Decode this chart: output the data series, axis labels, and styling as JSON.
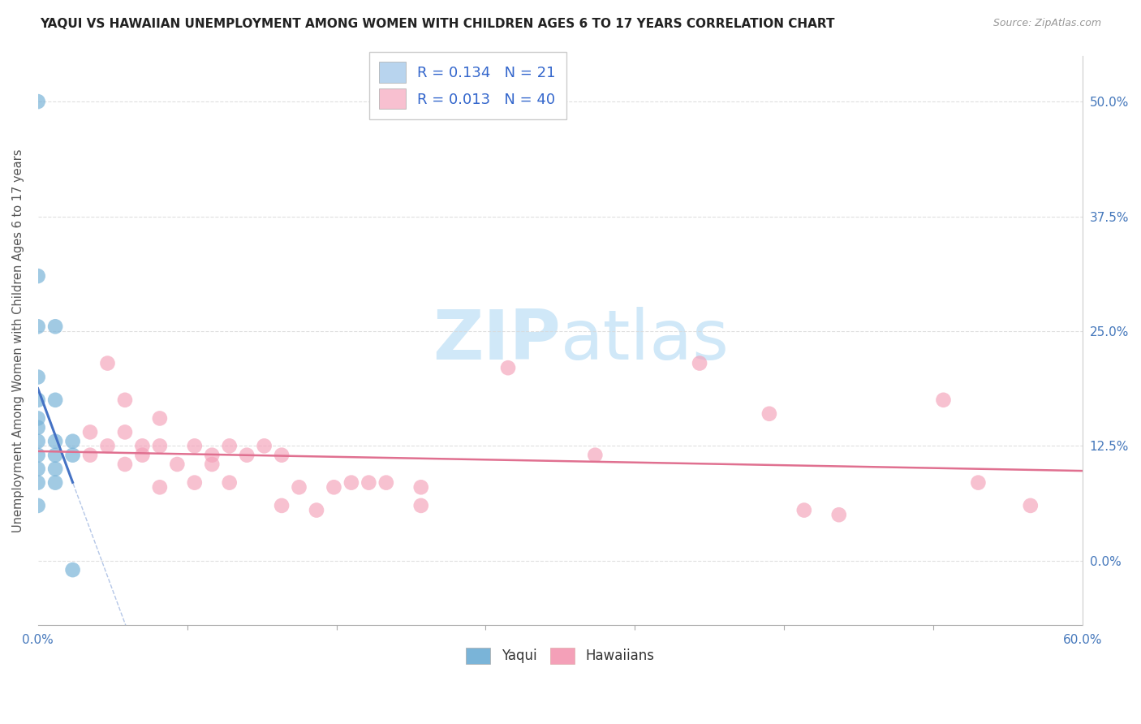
{
  "title": "YAQUI VS HAWAIIAN UNEMPLOYMENT AMONG WOMEN WITH CHILDREN AGES 6 TO 17 YEARS CORRELATION CHART",
  "source": "Source: ZipAtlas.com",
  "ylabel": "Unemployment Among Women with Children Ages 6 to 17 years",
  "xlim": [
    0.0,
    0.6
  ],
  "ylim": [
    -0.07,
    0.55
  ],
  "xtick_vals": [
    0.0,
    0.6
  ],
  "xtick_labels": [
    "0.0%",
    "60.0%"
  ],
  "ytick_positions_right": [
    0.5,
    0.375,
    0.25,
    0.125,
    0.0
  ],
  "ytick_labels_right": [
    "50.0%",
    "37.5%",
    "25.0%",
    "12.5%",
    "0.0%"
  ],
  "legend_r_n": [
    {
      "R": "0.134",
      "N": "21",
      "color": "#b8d4ee"
    },
    {
      "R": "0.013",
      "N": "40",
      "color": "#f8c0d0"
    }
  ],
  "legend_label_color": "#333333",
  "legend_value_color": "#3366cc",
  "yaqui_color": "#7ab4d8",
  "hawaiian_color": "#f4a0b8",
  "yaqui_scatter_x": [
    0.0,
    0.0,
    0.0,
    0.01,
    0.0,
    0.01,
    0.0,
    0.0,
    0.0,
    0.0,
    0.01,
    0.02,
    0.0,
    0.01,
    0.02,
    0.0,
    0.01,
    0.0,
    0.01,
    0.0,
    0.02
  ],
  "yaqui_scatter_y": [
    0.5,
    0.31,
    0.255,
    0.255,
    0.2,
    0.175,
    0.175,
    0.155,
    0.145,
    0.13,
    0.13,
    0.13,
    0.115,
    0.115,
    0.115,
    0.1,
    0.1,
    0.085,
    0.085,
    0.06,
    -0.01
  ],
  "hawaiian_scatter_x": [
    0.04,
    0.05,
    0.07,
    0.03,
    0.05,
    0.04,
    0.06,
    0.07,
    0.09,
    0.11,
    0.13,
    0.03,
    0.06,
    0.1,
    0.12,
    0.14,
    0.05,
    0.08,
    0.1,
    0.38,
    0.27,
    0.52,
    0.07,
    0.09,
    0.11,
    0.15,
    0.17,
    0.18,
    0.19,
    0.2,
    0.22,
    0.14,
    0.16,
    0.22,
    0.42,
    0.44,
    0.46,
    0.54,
    0.57,
    0.32
  ],
  "hawaiian_scatter_y": [
    0.215,
    0.175,
    0.155,
    0.14,
    0.14,
    0.125,
    0.125,
    0.125,
    0.125,
    0.125,
    0.125,
    0.115,
    0.115,
    0.115,
    0.115,
    0.115,
    0.105,
    0.105,
    0.105,
    0.215,
    0.21,
    0.175,
    0.08,
    0.085,
    0.085,
    0.08,
    0.08,
    0.085,
    0.085,
    0.085,
    0.08,
    0.06,
    0.055,
    0.06,
    0.16,
    0.055,
    0.05,
    0.085,
    0.06,
    0.115
  ],
  "background_color": "#ffffff",
  "grid_color": "#d8d8d8",
  "trendline_yaqui_color": "#4472c4",
  "trendline_hawaiian_color": "#e07090",
  "watermark_zip": "ZIP",
  "watermark_atlas": "atlas",
  "watermark_color": "#d0e8f8",
  "bottom_legend_labels": [
    "Yaqui",
    "Hawaiians"
  ]
}
